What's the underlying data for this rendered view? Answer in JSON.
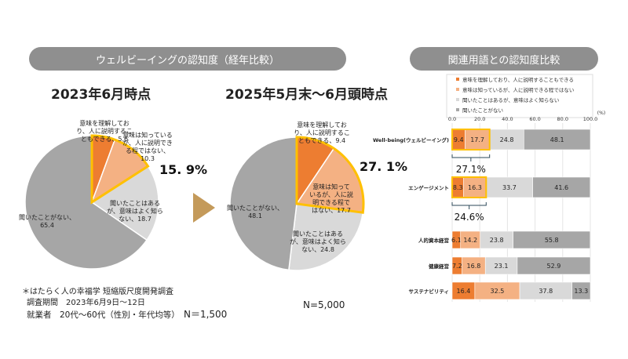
{
  "left_header": "ウェルビーイングの認知度（経年比較）",
  "right_header": "関連用語との認知度比較",
  "colors": {
    "understand": "#ED7D31",
    "know": "#F4B183",
    "heard": "#D9D9D9",
    "never": "#A6A6A6",
    "highlight": "#FFC000",
    "arrow": "#C49A5A"
  },
  "chart_data": [
    {
      "type": "pie",
      "title": "2023年6月時点",
      "highlight_total": "15. 9%",
      "slices": [
        {
          "label": "意味を理解しており、人に説明することもできる、5.6",
          "value": 5.6
        },
        {
          "label": "意味は知っているが、人に説明できる程ではない、10.3",
          "value": 10.3
        },
        {
          "label": "聞いたことはあるが、意味はよく知らない、18.7",
          "value": 18.7
        },
        {
          "label": "聞いたことがない、65.4",
          "value": 65.4
        }
      ]
    },
    {
      "type": "pie",
      "title": "2025年5月末～6月頭時点",
      "highlight_total": "27. 1%",
      "slices": [
        {
          "label": "意味を理解しており、人に説明することもできる、9.4",
          "value": 9.4
        },
        {
          "label": "意味は知っているが、人に説明できる程ではない、17.7",
          "value": 17.7
        },
        {
          "label": "聞いたことはあるが、意味はよく知らない、24.8",
          "value": 24.8
        },
        {
          "label": "聞いたことがない、48.1",
          "value": 48.1
        }
      ]
    },
    {
      "type": "bar",
      "orientation": "horizontal",
      "stacked": true,
      "xlim": [
        0,
        100
      ],
      "unit": "(%)",
      "ticks": [
        "0.0",
        "20.0",
        "40.0",
        "60.0",
        "80.0",
        "100.0"
      ],
      "categories": [
        "Well-being(ウェルビーイング)",
        "エンゲージメント",
        "人的資本経営",
        "健康経営",
        "サステナビリティ"
      ],
      "series": [
        {
          "name": "意味を理解しており、人に説明することもできる",
          "values": [
            9.4,
            8.3,
            6.1,
            7.2,
            16.4
          ]
        },
        {
          "name": "意味は知っているが、人に説明できる程ではない",
          "values": [
            17.7,
            16.3,
            14.2,
            16.8,
            32.5
          ]
        },
        {
          "name": "聞いたことはあるが、意味はよく知らない",
          "values": [
            24.8,
            33.7,
            23.8,
            23.1,
            37.8
          ]
        },
        {
          "name": "聞いたことがない",
          "values": [
            48.1,
            41.6,
            55.8,
            52.9,
            13.3
          ]
        }
      ],
      "legend": "top",
      "bracket_totals": [
        "27.1%",
        "24.6%"
      ]
    }
  ],
  "notes": {
    "survey": "＊はたらく人の幸福学 短縮版尺度開発調査",
    "period": "調査期間　2023年6月9日～12日",
    "sample": "就業者　20代～60代（性別・年代均等）",
    "n1": "N＝1,500",
    "n2": "N=5,000"
  }
}
